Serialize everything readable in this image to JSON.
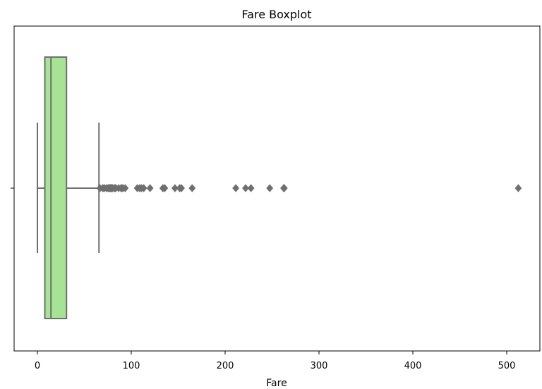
{
  "chart_data": {
    "type": "boxplot",
    "title": "Fare Boxplot",
    "xlabel": "Fare",
    "ylabel": "",
    "orientation": "horizontal",
    "xlim": [
      -25,
      540
    ],
    "xticks": [
      0,
      100,
      200,
      300,
      400,
      500
    ],
    "xtick_labels": [
      "0",
      "100",
      "200",
      "300",
      "400",
      "500"
    ],
    "grid": false,
    "box": {
      "whisker_low": 0,
      "q1": 7.9,
      "median": 14.45,
      "q3": 31.0,
      "whisker_high": 65.6
    },
    "outliers": [
      66.6,
      69.55,
      71.0,
      71.28,
      73.5,
      75.25,
      76.29,
      76.73,
      77.29,
      77.96,
      78.27,
      78.85,
      79.2,
      79.65,
      80.0,
      81.86,
      82.17,
      83.16,
      83.48,
      86.5,
      89.1,
      90.0,
      91.08,
      93.5,
      106.43,
      108.9,
      110.88,
      113.28,
      120.0,
      133.65,
      135.63,
      146.52,
      151.55,
      153.46,
      164.87,
      211.34,
      221.78,
      227.52,
      247.52,
      262.38,
      263.0,
      512.33
    ],
    "colors": {
      "box_fill": "#a6e394",
      "lines": "#6f6f6f",
      "outliers": "#6f6f6f"
    }
  }
}
